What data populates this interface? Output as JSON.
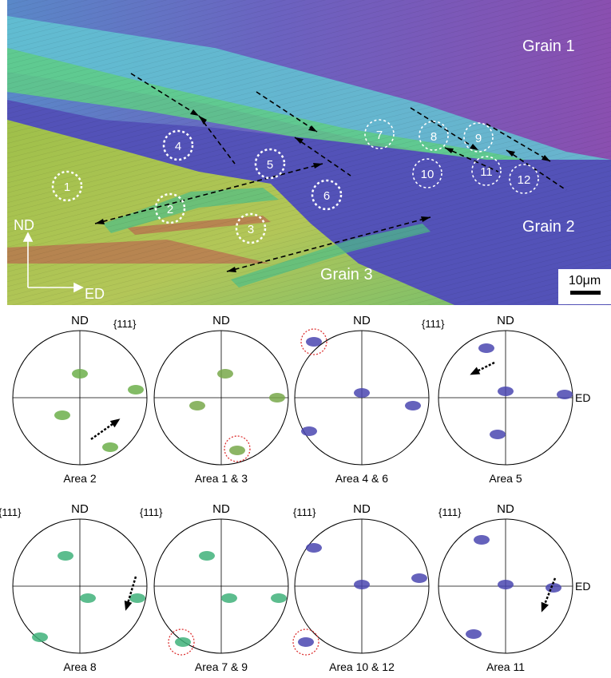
{
  "map": {
    "grain_labels": [
      "Grain 1",
      "Grain 2",
      "Grain 3"
    ],
    "area_numbers": [
      "1",
      "2",
      "3",
      "4",
      "5",
      "6",
      "7",
      "8",
      "9",
      "10",
      "11",
      "12"
    ],
    "axis_nd": "ND",
    "axis_ed": "ED",
    "scale_bar": "10μm",
    "colors": {
      "grain1": "#7a4fb8",
      "grain2": "#5751b5",
      "grain3": "#a7c24c",
      "band_cyan": "#6fd3cf",
      "band_green": "#5fcc86",
      "band_red": "#c2384b"
    }
  },
  "pole_figures": [
    {
      "caption": "Area 2",
      "top": "ND",
      "family_label": "",
      "side": "",
      "color": "#6caf4a"
    },
    {
      "caption": "Area 1 & 3",
      "top": "ND",
      "family_label": "{111}",
      "side": "",
      "color": "#78a84a"
    },
    {
      "caption": "Area 4 & 6",
      "top": "ND",
      "family_label": "",
      "side": "",
      "color": "#4a47b0"
    },
    {
      "caption": "Area 5",
      "top": "ND",
      "family_label": "{111}",
      "side": "ED",
      "color": "#4a47b0"
    },
    {
      "caption": "Area 8",
      "top": "ND",
      "family_label": "{111}",
      "side": "",
      "color": "#3fb27a"
    },
    {
      "caption": "Area 7 & 9",
      "top": "ND",
      "family_label": "{111}",
      "side": "",
      "color": "#3fb27a"
    },
    {
      "caption": "Area 10 & 12",
      "top": "ND",
      "family_label": "{111}",
      "side": "",
      "color": "#4a47b0"
    },
    {
      "caption": "Area 11",
      "top": "ND",
      "family_label": "{111}",
      "side": "ED",
      "color": "#4a47b0"
    }
  ]
}
